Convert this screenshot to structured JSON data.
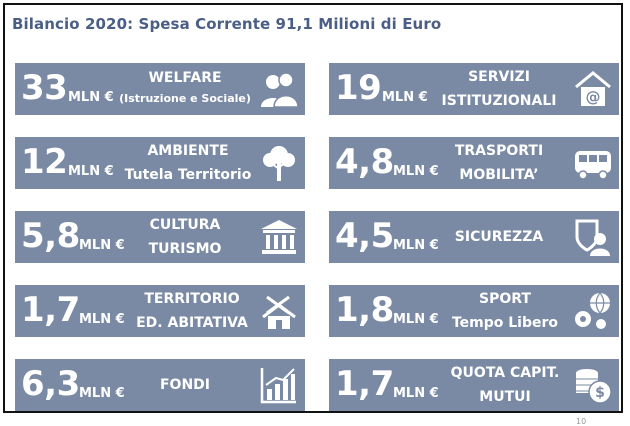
{
  "title": "Bilancio 2020: Spesa Corrente 91,1 Milioni di Euro",
  "unit": "MLN €",
  "page_number": "10",
  "tiles": [
    {
      "value": "33",
      "line1": "WELFARE",
      "line2": "(Istruzione e Sociale)",
      "icon": "people-icon"
    },
    {
      "value": "19",
      "line1": "SERVIZI",
      "line2": "ISTITUZIONALI",
      "icon": "email-home-icon"
    },
    {
      "value": "12",
      "line1": "AMBIENTE",
      "line2": "Tutela Territorio",
      "icon": "tree-icon"
    },
    {
      "value": "4,8",
      "line1": "TRASPORTI",
      "line2": "MOBILITA’",
      "icon": "bus-icon"
    },
    {
      "value": "5,8",
      "line1": "CULTURA",
      "line2": "TURISMO",
      "icon": "museum-icon"
    },
    {
      "value": "4,5",
      "line1": "SICUREZZA",
      "line2": "",
      "icon": "security-shield-icon"
    },
    {
      "value": "1,7",
      "line1": "TERRITORIO",
      "line2": "ED. ABITATIVA",
      "icon": "house-tools-icon"
    },
    {
      "value": "1,8",
      "line1": "SPORT",
      "line2": "Tempo Libero",
      "icon": "sports-balls-icon"
    },
    {
      "value": "6,3",
      "line1": "FONDI",
      "line2": "",
      "icon": "growth-chart-icon"
    },
    {
      "value": "1,7",
      "line1": "QUOTA CAPIT.",
      "line2": "MUTUI",
      "icon": "coins-icon"
    }
  ]
}
